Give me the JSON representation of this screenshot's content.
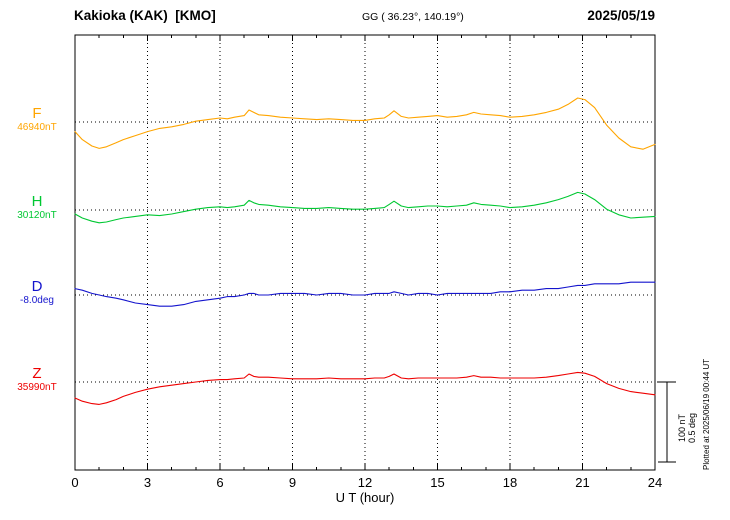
{
  "header": {
    "station": "Kakioka (KAK)  [KMO]",
    "coordinates": "GG ( 36.23°, 140.19°)",
    "date": "2025/05/19"
  },
  "x_axis": {
    "label": "U T (hour)",
    "ticks": [
      0,
      3,
      6,
      9,
      12,
      15,
      18,
      21,
      24
    ],
    "min": 0,
    "max": 24
  },
  "scale_bar": {
    "nT_label": "100 nT",
    "deg_label": "0.5 deg",
    "nT_value": 100,
    "deg_value": 0.5
  },
  "plot_note": "Plotted at 2025/06/19 00:44 UT",
  "chart_data": {
    "type": "line",
    "title": "Kakioka (KAK) [KMO] magnetogram 2025/05/19",
    "xlabel": "U T (hour)",
    "xlim": [
      0,
      24
    ],
    "grid": "dotted vertical gridlines every 3 hours, dotted horizontal baseline per trace",
    "legend_position": "left baseline labels",
    "series": [
      {
        "name": "F",
        "baseline_label": "46940nT",
        "baseline_value": 46940,
        "unit": "nT",
        "color": "#FFA500",
        "x": [
          0,
          0.3,
          0.7,
          1.0,
          1.3,
          1.7,
          2.0,
          2.5,
          3.0,
          3.5,
          4.0,
          4.5,
          5.0,
          5.5,
          6.0,
          6.3,
          6.6,
          7.0,
          7.2,
          7.4,
          7.6,
          8.0,
          8.5,
          9.0,
          9.5,
          10.0,
          10.5,
          11.0,
          11.5,
          12.0,
          12.4,
          12.8,
          13.0,
          13.2,
          13.5,
          13.8,
          14.2,
          14.6,
          15.0,
          15.4,
          15.8,
          16.2,
          16.5,
          16.8,
          17.2,
          17.6,
          18.0,
          18.5,
          19.0,
          19.5,
          20.0,
          20.4,
          20.8,
          21.1,
          21.5,
          22.0,
          22.5,
          23.0,
          23.5,
          24.0
        ],
        "offsets": [
          -12,
          -22,
          -30,
          -33,
          -31,
          -26,
          -22,
          -17,
          -12,
          -8,
          -6,
          -3,
          1,
          3,
          5,
          4,
          6,
          8,
          15,
          12,
          9,
          8,
          6,
          5,
          4,
          3,
          4,
          3,
          2,
          2,
          4,
          5,
          9,
          14,
          7,
          5,
          6,
          7,
          8,
          6,
          7,
          9,
          12,
          10,
          9,
          8,
          6,
          7,
          9,
          12,
          16,
          22,
          30,
          28,
          18,
          -4,
          -20,
          -31,
          -34,
          -28
        ]
      },
      {
        "name": "H",
        "baseline_label": "30120nT",
        "baseline_value": 30120,
        "unit": "nT",
        "color": "#00C832",
        "x": [
          0,
          0.3,
          0.7,
          1.0,
          1.3,
          1.7,
          2.0,
          2.5,
          3.0,
          3.5,
          4.0,
          4.5,
          5.0,
          5.5,
          6.0,
          6.3,
          6.6,
          7.0,
          7.2,
          7.4,
          7.6,
          8.0,
          8.5,
          9.0,
          9.5,
          10.0,
          10.5,
          11.0,
          11.5,
          12.0,
          12.4,
          12.8,
          13.0,
          13.2,
          13.5,
          13.8,
          14.2,
          14.6,
          15.0,
          15.4,
          15.8,
          16.2,
          16.5,
          16.8,
          17.2,
          17.6,
          18.0,
          18.5,
          19.0,
          19.5,
          20.0,
          20.4,
          20.8,
          21.1,
          21.5,
          22.0,
          22.5,
          23.0,
          23.5,
          24.0
        ],
        "offsets": [
          -5,
          -10,
          -14,
          -16,
          -15,
          -12,
          -10,
          -8,
          -6,
          -7,
          -5,
          -2,
          1,
          3,
          4,
          3,
          4,
          6,
          12,
          9,
          7,
          6,
          4,
          3,
          2,
          2,
          3,
          2,
          1,
          1,
          2,
          3,
          7,
          11,
          5,
          3,
          4,
          5,
          5,
          4,
          5,
          6,
          9,
          7,
          6,
          5,
          3,
          4,
          6,
          9,
          13,
          17,
          22,
          20,
          13,
          1,
          -6,
          -10,
          -9,
          -8
        ]
      },
      {
        "name": "D",
        "baseline_label": "-8.0deg",
        "baseline_value": -8.0,
        "unit": "deg",
        "color": "#1414CD",
        "x": [
          0,
          0.3,
          0.7,
          1.0,
          1.3,
          1.7,
          2.0,
          2.5,
          3.0,
          3.5,
          4.0,
          4.5,
          5.0,
          5.5,
          6.0,
          6.3,
          6.6,
          7.0,
          7.2,
          7.4,
          7.6,
          8.0,
          8.5,
          9.0,
          9.5,
          10.0,
          10.5,
          11.0,
          11.5,
          12.0,
          12.4,
          12.8,
          13.0,
          13.2,
          13.5,
          13.8,
          14.2,
          14.6,
          15.0,
          15.4,
          15.8,
          16.2,
          16.5,
          16.8,
          17.2,
          17.6,
          18.0,
          18.5,
          19.0,
          19.5,
          20.0,
          20.4,
          20.8,
          21.1,
          21.5,
          22.0,
          22.5,
          23.0,
          23.5,
          24.0
        ],
        "offsets": [
          0.04,
          0.03,
          0.01,
          0.0,
          -0.01,
          -0.02,
          -0.03,
          -0.05,
          -0.06,
          -0.07,
          -0.07,
          -0.06,
          -0.04,
          -0.03,
          -0.02,
          -0.01,
          -0.01,
          0.0,
          0.01,
          0.01,
          0.0,
          0.0,
          0.01,
          0.01,
          0.01,
          0.0,
          0.01,
          0.01,
          0.0,
          0.0,
          0.01,
          0.01,
          0.01,
          0.02,
          0.01,
          0.0,
          0.01,
          0.01,
          0.0,
          0.01,
          0.01,
          0.01,
          0.01,
          0.01,
          0.01,
          0.02,
          0.02,
          0.03,
          0.03,
          0.04,
          0.04,
          0.05,
          0.06,
          0.06,
          0.07,
          0.07,
          0.07,
          0.08,
          0.08,
          0.08
        ]
      },
      {
        "name": "Z",
        "baseline_label": "35990nT",
        "baseline_value": 35990,
        "unit": "nT",
        "color": "#EE0000",
        "x": [
          0,
          0.3,
          0.7,
          1.0,
          1.3,
          1.7,
          2.0,
          2.5,
          3.0,
          3.5,
          4.0,
          4.5,
          5.0,
          5.5,
          6.0,
          6.3,
          6.6,
          7.0,
          7.2,
          7.4,
          7.6,
          8.0,
          8.5,
          9.0,
          9.5,
          10.0,
          10.5,
          11.0,
          11.5,
          12.0,
          12.4,
          12.8,
          13.0,
          13.2,
          13.5,
          13.8,
          14.2,
          14.6,
          15.0,
          15.4,
          15.8,
          16.2,
          16.5,
          16.8,
          17.2,
          17.6,
          18.0,
          18.5,
          19.0,
          19.5,
          20.0,
          20.4,
          20.8,
          21.1,
          21.5,
          22.0,
          22.5,
          23.0,
          23.5,
          24.0
        ],
        "offsets": [
          -20,
          -24,
          -27,
          -28,
          -26,
          -22,
          -18,
          -13,
          -9,
          -6,
          -4,
          -2,
          0,
          2,
          3,
          3,
          4,
          5,
          10,
          7,
          6,
          6,
          5,
          4,
          4,
          4,
          5,
          4,
          4,
          4,
          5,
          5,
          7,
          10,
          5,
          4,
          5,
          5,
          5,
          5,
          5,
          6,
          8,
          6,
          6,
          5,
          5,
          5,
          5,
          6,
          8,
          10,
          12,
          11,
          7,
          -2,
          -8,
          -12,
          -14,
          -16
        ]
      }
    ]
  }
}
